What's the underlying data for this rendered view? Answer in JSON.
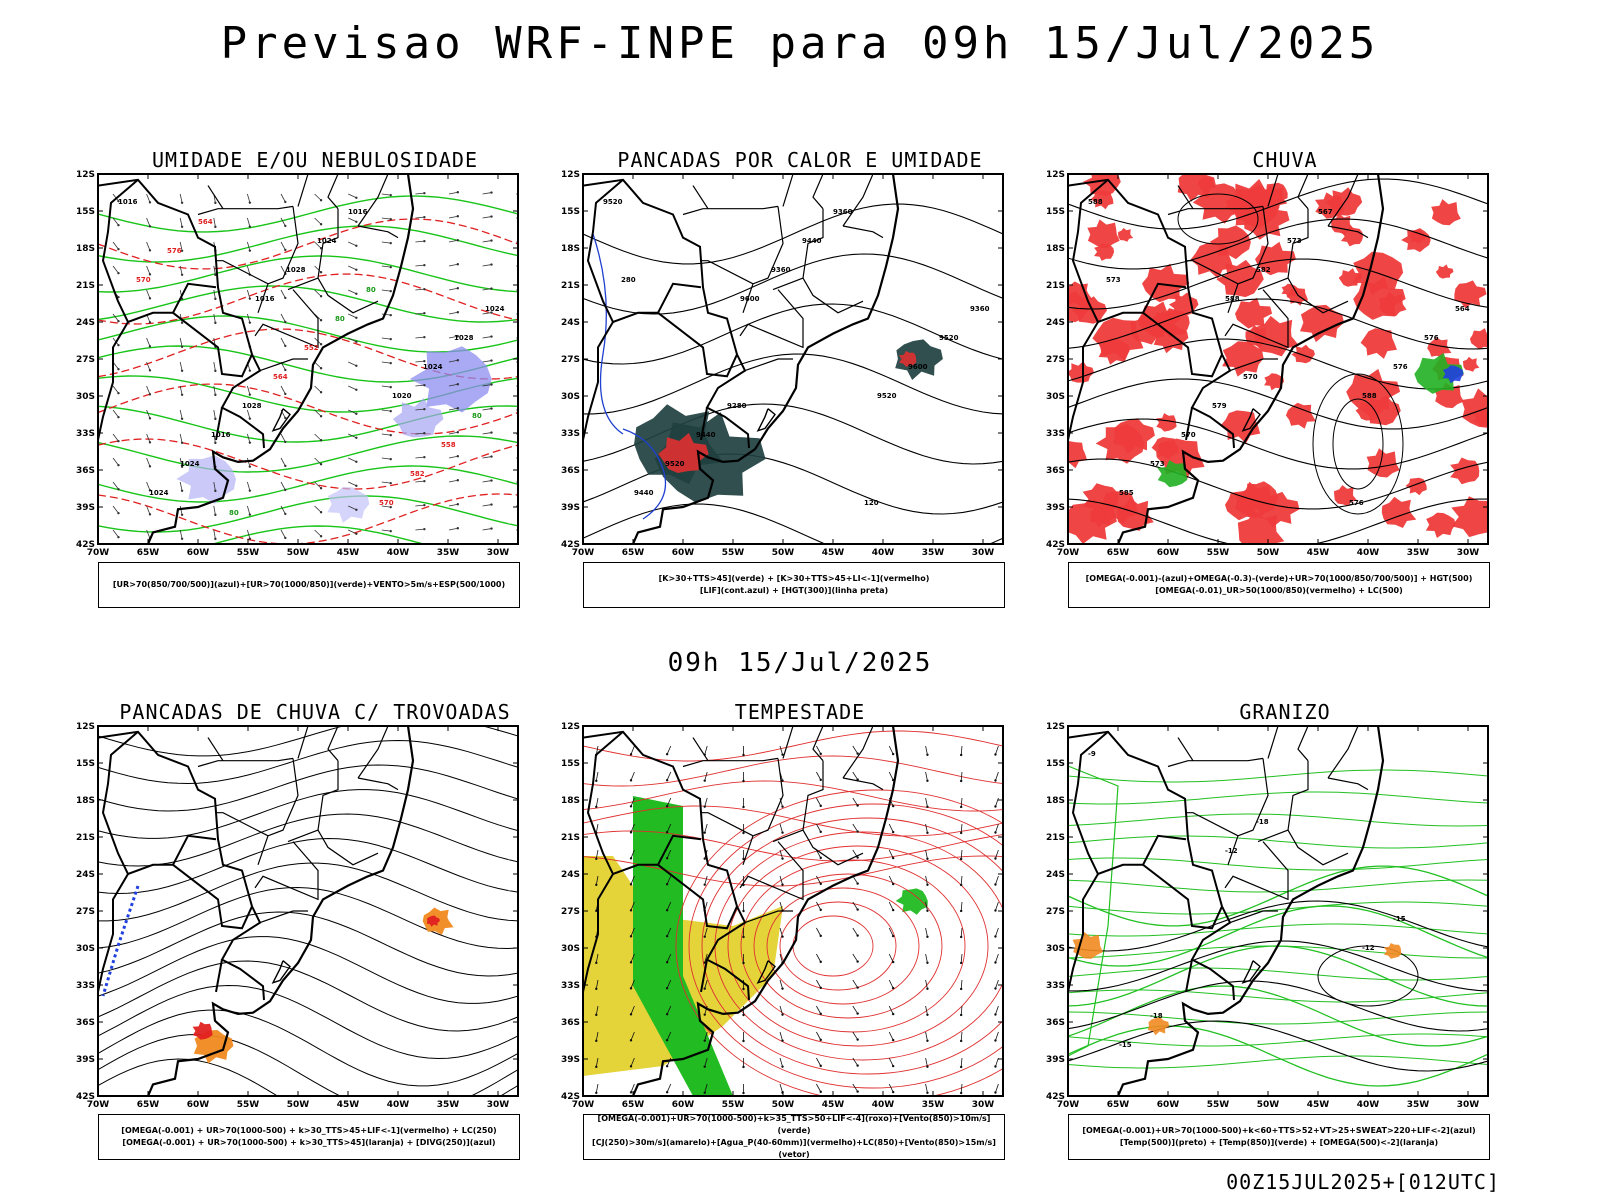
{
  "main_title": "Previsao WRF-INPE  para 09h 15/Jul/2025",
  "mid_title": "09h 15/Jul/2025",
  "footer": "00Z15JUL2025+[012UTC]",
  "lat_ticks": [
    "12S",
    "15S",
    "18S",
    "21S",
    "24S",
    "27S",
    "30S",
    "33S",
    "36S",
    "39S",
    "42S"
  ],
  "lon_ticks": [
    "70W",
    "65W",
    "60W",
    "55W",
    "50W",
    "45W",
    "40W",
    "35W",
    "30W"
  ],
  "panels": [
    {
      "title": "UMIDADE E/OU NEBULOSIDADE",
      "legend": [
        "[UR>70(850/700/500)](azul)+[UR>70(1000/850)](verde)+VENTO>5m/s+ESP(500/1000)"
      ],
      "labels": [
        "1016",
        "1016",
        "1020",
        "1024",
        "1028",
        "1024",
        "1024",
        "1024",
        "1028",
        "1016",
        "1016",
        "1024",
        "1028",
        "570",
        "570",
        "564",
        "582",
        "576",
        "552",
        "558",
        "564",
        "80",
        "80",
        "80",
        "80"
      ]
    },
    {
      "title": "PANCADAS POR CALOR E UMIDADE",
      "legend": [
        "[K>30+TTS>45](verde) + [K>30+TTS>45+LI<-1](vermelho)",
        "[LIF](cont.azul) + [HGT(300)](linha preta)"
      ],
      "labels": [
        "9520",
        "9600",
        "9520",
        "9440",
        "9360",
        "9600",
        "9520",
        "9440",
        "9520",
        "9440",
        "9360",
        "9360",
        "9280",
        "120",
        "280"
      ]
    },
    {
      "title": "CHUVA",
      "legend": [
        "[OMEGA(-0.001)-(azul)+OMEGA(-0.3)-(verde)+UR>70(1000/850/700/500)] + HGT(500)",
        "[OMEGA(-0.01)_UR>50(1000/850)(vermelho) + LC(500)"
      ],
      "labels": [
        "588",
        "588",
        "588",
        "585",
        "582",
        "576",
        "573",
        "573",
        "576",
        "570",
        "567",
        "564",
        "579",
        "576",
        "573",
        "570"
      ]
    },
    {
      "title": "PANCADAS DE CHUVA C/ TROVOADAS",
      "legend": [
        "[OMEGA(-0.001) + UR>70(1000-500) + k>30_TTS>45+LIF<-1](vermelho) + LC(250)",
        "[OMEGA(-0.001) + UR>70(1000-500) + k>30_TTS>45](laranja) + [DIVG(250)](azul)"
      ],
      "labels": []
    },
    {
      "title": "TEMPESTADE",
      "legend": [
        "[OMEGA(-0.001)+UR>70(1000-500)+k>35_TTS>50+LIF<-4](roxo)+[Vento(850)>10m/s](verde)",
        "[CJ(250)>30m/s](amarelo)+[Agua_P(40-60mm)](vermelho)+LC(850)+[Vento(850)>15m/s](vetor)"
      ],
      "labels": []
    },
    {
      "title": "GRANIZO",
      "legend": [
        "[OMEGA(-0.001)+UR>70(1000-500)+k<60+TTS>52+VT>25+SWEAT>220+LIF<-2](azul)",
        "[Temp(500)](preto) + [Temp(850)](verde) + [OMEGA(500)<-2](laranja)"
      ],
      "labels": [
        "-9",
        "-12",
        "-12",
        "-15",
        "-18",
        "-15",
        "-18"
      ]
    }
  ]
}
